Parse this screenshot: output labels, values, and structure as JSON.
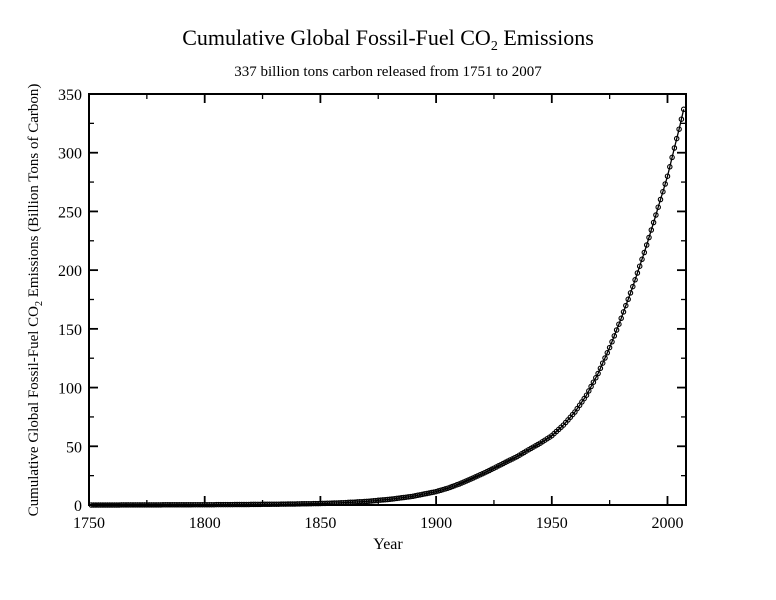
{
  "figure": {
    "background_color": "#ffffff",
    "text_color": "#000000",
    "title": {
      "prefix": "Cumulative Global Fossil-Fuel CO",
      "subscript": "2",
      "suffix": " Emissions"
    },
    "subtitle": "337 billion tons carbon released from 1751 to 2007",
    "x_axis_label": "Year",
    "y_axis_label": {
      "prefix": "Cumulative Global Fossil-Fuel CO",
      "subscript": "2",
      "suffix": " Emissions (Billion Tons of Carbon)"
    }
  },
  "chart_data": {
    "type": "line",
    "title": "Cumulative Global Fossil-Fuel CO2 Emissions",
    "subtitle": "337 billion tons carbon released from 1751 to 2007",
    "xlabel": "Year",
    "ylabel": "Cumulative Global Fossil-Fuel CO2 Emissions (Billion Tons of Carbon)",
    "grid": false,
    "legend": false,
    "marker_style": "open-circle",
    "line_color": "#000000",
    "x_axis": {
      "min": 1750,
      "max": 2008,
      "major_ticks": [
        1750,
        1800,
        1850,
        1900,
        1950,
        2000
      ],
      "minor_tick_step": 25
    },
    "y_axis": {
      "min": 0,
      "max": 350,
      "major_ticks": [
        0,
        50,
        100,
        150,
        200,
        250,
        300,
        350
      ],
      "minor_tick_step": 25
    },
    "series": [
      {
        "name": "cumulative-co2-emissions",
        "first_year": 1751,
        "last_year": 2007,
        "final_value_billion_tons": 337,
        "markers_every_year": true,
        "anchors": [
          [
            1751,
            0.003
          ],
          [
            1760,
            0.03
          ],
          [
            1770,
            0.07
          ],
          [
            1780,
            0.12
          ],
          [
            1790,
            0.18
          ],
          [
            1800,
            0.25
          ],
          [
            1810,
            0.35
          ],
          [
            1820,
            0.48
          ],
          [
            1830,
            0.66
          ],
          [
            1840,
            0.91
          ],
          [
            1850,
            1.26
          ],
          [
            1860,
            1.95
          ],
          [
            1870,
            3.07
          ],
          [
            1880,
            4.85
          ],
          [
            1890,
            7.43
          ],
          [
            1900,
            11.4
          ],
          [
            1905,
            14.3
          ],
          [
            1910,
            17.9
          ],
          [
            1915,
            22.1
          ],
          [
            1920,
            26.6
          ],
          [
            1925,
            31.3
          ],
          [
            1930,
            36.4
          ],
          [
            1935,
            41.2
          ],
          [
            1940,
            47.1
          ],
          [
            1945,
            52.6
          ],
          [
            1950,
            59.0
          ],
          [
            1955,
            68.0
          ],
          [
            1960,
            79.2
          ],
          [
            1965,
            93.5
          ],
          [
            1970,
            112
          ],
          [
            1975,
            134
          ],
          [
            1980,
            159
          ],
          [
            1985,
            186
          ],
          [
            1990,
            215
          ],
          [
            1995,
            247
          ],
          [
            2000,
            280
          ],
          [
            2005,
            320
          ],
          [
            2007,
            337
          ]
        ]
      }
    ]
  }
}
